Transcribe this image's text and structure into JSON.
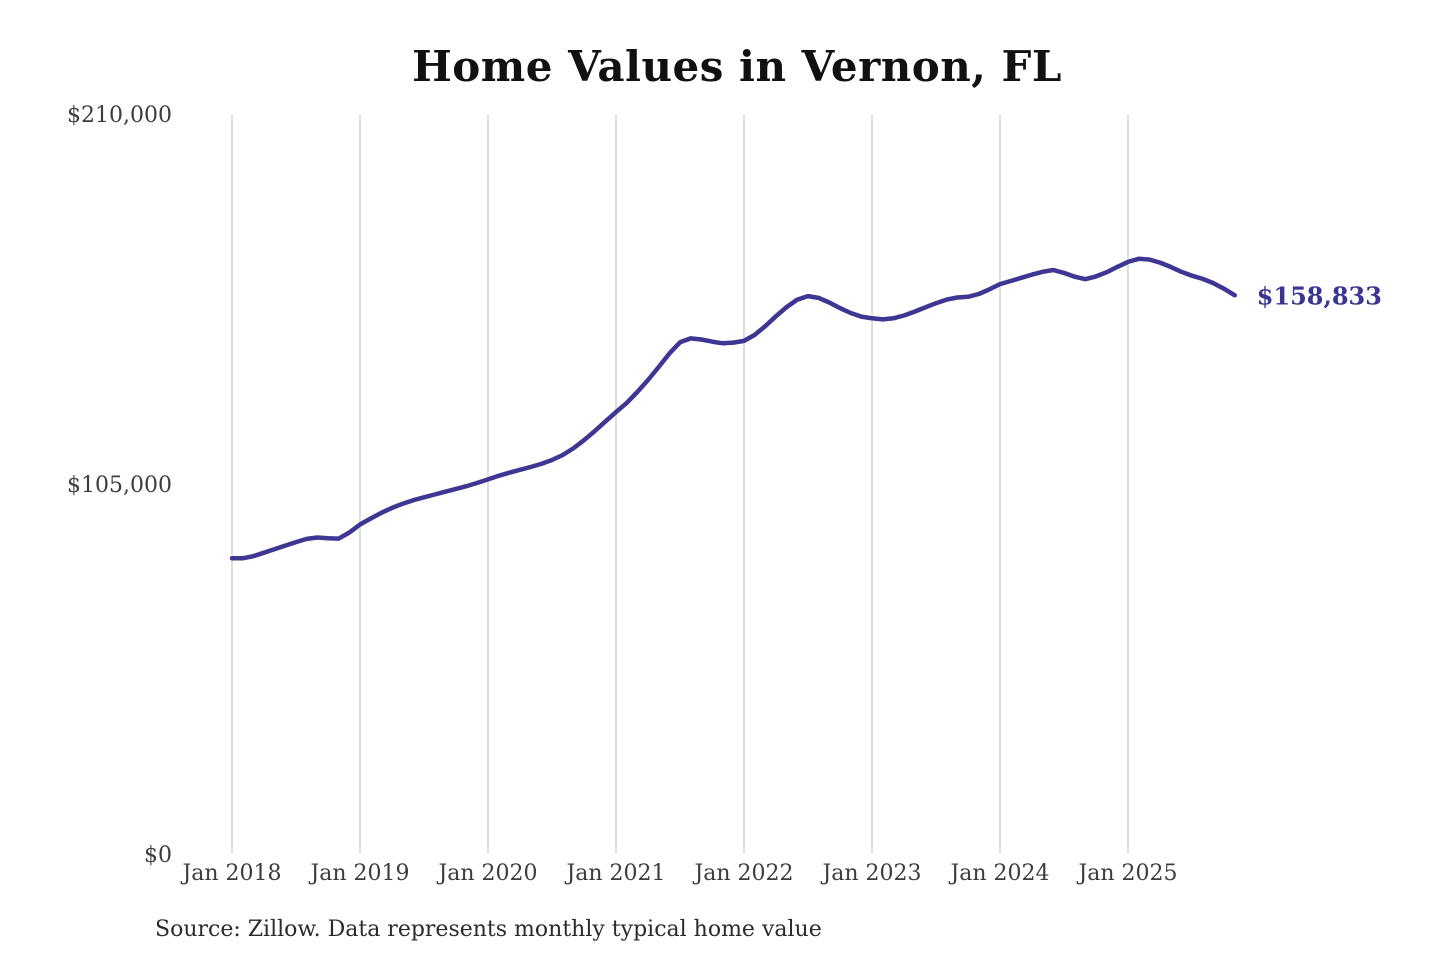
{
  "page": {
    "title": "Home Values in Vernon, FL",
    "source_note": "Source: Zillow. Data represents monthly typical home value"
  },
  "chart_data": {
    "type": "line",
    "title": "Home Values in Vernon, FL",
    "series_name": "Monthly typical home value",
    "unit": "USD",
    "ylim": [
      0,
      210000
    ],
    "grid": "vertical-only",
    "legend": "none",
    "line_color": "#3d3693",
    "end_label_color": "#3a3590",
    "gridline_color": "#c9c9c9",
    "label_color": "#3d3d3d",
    "latest_value": 158833,
    "latest_label": "$158,833",
    "y_ticks": [
      {
        "value": 0,
        "label": "$0"
      },
      {
        "value": 105000,
        "label": "$105,000"
      },
      {
        "value": 210000,
        "label": "$210,000"
      }
    ],
    "x_ticks": [
      {
        "month_index": 0,
        "label": "Jan 2018"
      },
      {
        "month_index": 12,
        "label": "Jan 2019"
      },
      {
        "month_index": 24,
        "label": "Jan 2020"
      },
      {
        "month_index": 36,
        "label": "Jan 2021"
      },
      {
        "month_index": 48,
        "label": "Jan 2022"
      },
      {
        "month_index": 60,
        "label": "Jan 2023"
      },
      {
        "month_index": 72,
        "label": "Jan 2024"
      },
      {
        "month_index": 84,
        "label": "Jan 2025"
      }
    ],
    "x": [
      "2018-01",
      "2018-02",
      "2018-03",
      "2018-04",
      "2018-05",
      "2018-06",
      "2018-07",
      "2018-08",
      "2018-09",
      "2018-10",
      "2018-11",
      "2018-12",
      "2019-01",
      "2019-02",
      "2019-03",
      "2019-04",
      "2019-05",
      "2019-06",
      "2019-07",
      "2019-08",
      "2019-09",
      "2019-10",
      "2019-11",
      "2019-12",
      "2020-01",
      "2020-02",
      "2020-03",
      "2020-04",
      "2020-05",
      "2020-06",
      "2020-07",
      "2020-08",
      "2020-09",
      "2020-10",
      "2020-11",
      "2020-12",
      "2021-01",
      "2021-02",
      "2021-03",
      "2021-04",
      "2021-05",
      "2021-06",
      "2021-07",
      "2021-08",
      "2021-09",
      "2021-10",
      "2021-11",
      "2021-12",
      "2022-01",
      "2022-02",
      "2022-03",
      "2022-04",
      "2022-05",
      "2022-06",
      "2022-07",
      "2022-08",
      "2022-09",
      "2022-10",
      "2022-11",
      "2022-12",
      "2023-01",
      "2023-02",
      "2023-03",
      "2023-04",
      "2023-05",
      "2023-06",
      "2023-07",
      "2023-08",
      "2023-09",
      "2023-10",
      "2023-11",
      "2023-12",
      "2024-01",
      "2024-02",
      "2024-03",
      "2024-04",
      "2024-05",
      "2024-06",
      "2024-07",
      "2024-08",
      "2024-09",
      "2024-10",
      "2024-11",
      "2024-12",
      "2025-01",
      "2025-02",
      "2025-03",
      "2025-04",
      "2025-05",
      "2025-06",
      "2025-07",
      "2025-08",
      "2025-09",
      "2025-10",
      "2025-11"
    ],
    "values": [
      84200,
      84200,
      84800,
      85800,
      86800,
      87800,
      88800,
      89700,
      90100,
      89900,
      89800,
      91500,
      93800,
      95500,
      97100,
      98500,
      99700,
      100700,
      101500,
      102300,
      103100,
      103900,
      104700,
      105600,
      106600,
      107600,
      108500,
      109300,
      110100,
      111000,
      112100,
      113500,
      115400,
      117700,
      120300,
      123000,
      125700,
      128300,
      131400,
      134800,
      138500,
      142300,
      145500,
      146600,
      146300,
      145700,
      145200,
      145400,
      145900,
      147600,
      150100,
      152900,
      155500,
      157600,
      158600,
      158100,
      156800,
      155200,
      153800,
      152800,
      152300,
      152000,
      152300,
      153100,
      154200,
      155400,
      156600,
      157600,
      158200,
      158400,
      159200,
      160500,
      162000,
      162900,
      163800,
      164700,
      165500,
      166000,
      165200,
      164100,
      163400,
      164200,
      165400,
      166900,
      168300,
      169200,
      169000,
      168100,
      166900,
      165500,
      164400,
      163500,
      162300,
      160700,
      158833
    ]
  }
}
